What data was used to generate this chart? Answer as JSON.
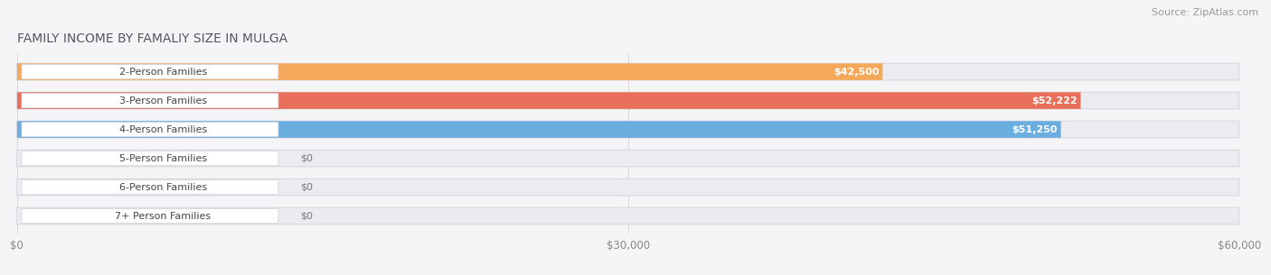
{
  "title": "FAMILY INCOME BY FAMALIY SIZE IN MULGA",
  "source": "Source: ZipAtlas.com",
  "categories": [
    "2-Person Families",
    "3-Person Families",
    "4-Person Families",
    "5-Person Families",
    "6-Person Families",
    "7+ Person Families"
  ],
  "values": [
    42500,
    52222,
    51250,
    0,
    0,
    0
  ],
  "bar_colors": [
    "#f5a85a",
    "#e8705a",
    "#6aaee0",
    "#c8a8d5",
    "#70c8c0",
    "#a8b4d8"
  ],
  "dot_colors": [
    "#f5a85a",
    "#e8705a",
    "#6aaee0",
    "#c8a8d5",
    "#70c8c0",
    "#a8b4d8"
  ],
  "value_labels": [
    "$42,500",
    "$52,222",
    "$51,250",
    "$0",
    "$0",
    "$0"
  ],
  "xlim_data": [
    0,
    60000
  ],
  "xticks": [
    0,
    30000,
    60000
  ],
  "xticklabels": [
    "$0",
    "$30,000",
    "$60,000"
  ],
  "background_color": "#f5f5f7",
  "bar_background_color": "#e8e8ee",
  "bar_background_light": "#f0f0f5",
  "title_fontsize": 10,
  "source_fontsize": 8,
  "label_fontsize": 8,
  "value_fontsize": 8
}
